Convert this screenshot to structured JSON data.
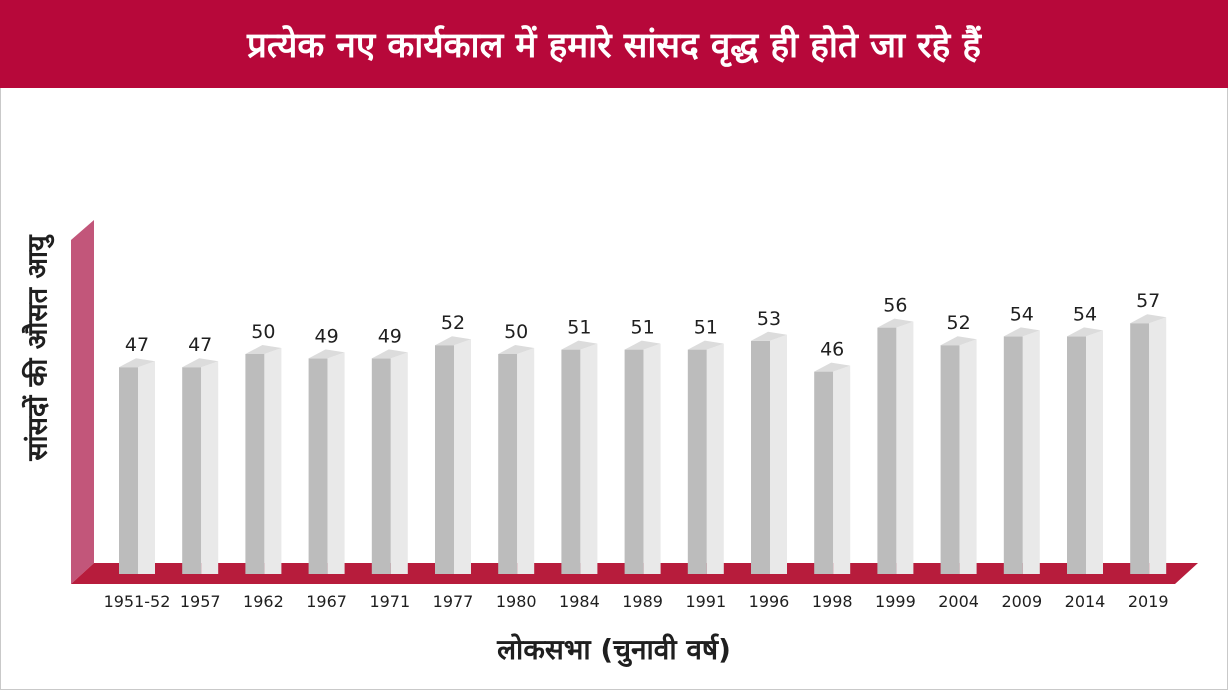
{
  "title": "प्रत्येक नए कार्यकाल में हमारे सांसद वृद्ध ही होते जा रहे हैं",
  "colors": {
    "title_bar": "#b7083a",
    "axis_wall": "#c2567a",
    "floor": "#b71c3c",
    "bar_front": "#bcbcbc",
    "bar_side": "#e9e9e9",
    "bar_top": "#dcdcdc"
  },
  "chart_data": {
    "type": "bar",
    "title": "प्रत्येक नए कार्यकाल में हमारे सांसद वृद्ध ही होते जा रहे हैं",
    "xlabel": "लोकसभा (चुनावी वर्ष)",
    "ylabel": "सांसदों की औसत आयु",
    "categories": [
      "1951-52",
      "1957",
      "1962",
      "1967",
      "1971",
      "1977",
      "1980",
      "1984",
      "1989",
      "1991",
      "1996",
      "1998",
      "1999",
      "2004",
      "2009",
      "2014",
      "2019"
    ],
    "values": [
      47,
      47,
      50,
      49,
      49,
      52,
      50,
      51,
      51,
      51,
      53,
      46,
      56,
      52,
      54,
      54,
      57
    ],
    "data_labels": true,
    "style": "3d-bar",
    "grid": false,
    "legend": "none"
  }
}
